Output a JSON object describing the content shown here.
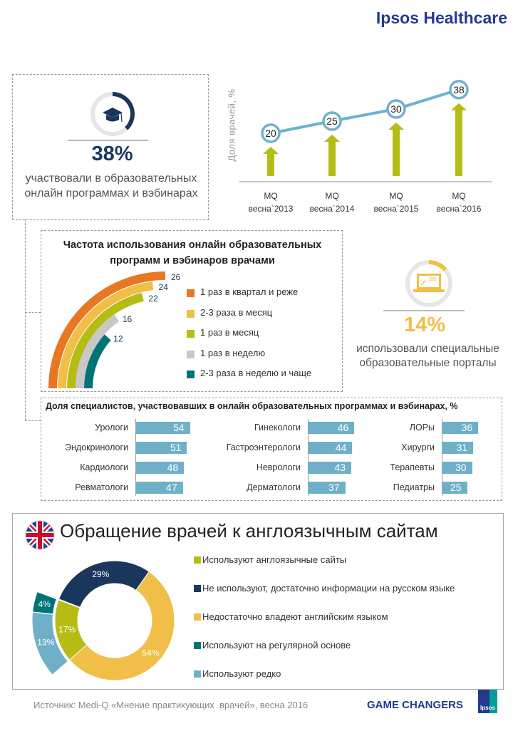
{
  "header": {
    "brand": "Ipsos Healthcare"
  },
  "stat_programs": {
    "value": "38%",
    "text_line1": "участвовали в образовательных",
    "text_line2": "онлайн программах и вэбинарах",
    "fraction": 0.38,
    "icon": "graduation-cap-icon"
  },
  "stat_portals": {
    "value": "14%",
    "text_line1": "использовали специальные",
    "text_line2": "образовательные порталы",
    "fraction": 0.14,
    "icon": "laptop-icon"
  },
  "chart_data": [
    {
      "type": "line",
      "title": "",
      "ylabel": "Доля врачей, %",
      "categories": [
        [
          "MQ",
          "весна`2013"
        ],
        [
          "MQ",
          "весна`2014"
        ],
        [
          "MQ",
          "весна`2015"
        ],
        [
          "MQ",
          "весна`2016"
        ]
      ],
      "values": [
        20,
        25,
        30,
        38
      ],
      "color": "#6fb2cb",
      "arrow_color": "#b5bd14"
    },
    {
      "type": "radial-bar",
      "title_line1": "Частота использования онлайн образовательных",
      "title_line2": "программ и вэбинаров врачами",
      "series": [
        {
          "name": "1 раз в квартал и реже",
          "value": 26,
          "color": "#e87722"
        },
        {
          "name": "2-3 раза в месяц",
          "value": 24,
          "color": "#f1be48"
        },
        {
          "name": "1 раз в месяц",
          "value": 22,
          "color": "#b5bd14"
        },
        {
          "name": "1 раз в неделю",
          "value": 16,
          "color": "#c8c8c8"
        },
        {
          "name": "2-3 раза в неделю и чаще",
          "value": 12,
          "color": "#007377"
        }
      ]
    },
    {
      "type": "bar",
      "title": "Доля специалистов, участвовавших в онлайн образовательных программах и вэбинарах, %",
      "color": "#6fb0c8",
      "columns": [
        [
          {
            "label": "Урологи",
            "value": 54
          },
          {
            "label": "Эндокринологи",
            "value": 51
          },
          {
            "label": "Кардиологи",
            "value": 48
          },
          {
            "label": "Ревматологи",
            "value": 47
          }
        ],
        [
          {
            "label": "Гинекологи",
            "value": 46
          },
          {
            "label": "Гастроэнтерологи",
            "value": 44
          },
          {
            "label": "Неврологи",
            "value": 43
          },
          {
            "label": "Дерматологи",
            "value": 37
          }
        ],
        [
          {
            "label": "ЛОРы",
            "value": 36
          },
          {
            "label": "Хирурги",
            "value": 31
          },
          {
            "label": "Терапевты",
            "value": 30
          },
          {
            "label": "Педиатры",
            "value": 25
          }
        ]
      ]
    },
    {
      "type": "pie",
      "title": "Обращение врачей к англоязычным сайтам",
      "slices": [
        {
          "name": "Используют англоязычные сайты",
          "value": 17,
          "label": "17%",
          "color": "#b5bd14"
        },
        {
          "name": "Не используют, достаточно информации на русском языке",
          "value": 29,
          "label": "29%",
          "color": "#1b365d"
        },
        {
          "name": "Недостаточно владеют английским языком",
          "value": 54,
          "label": "54%",
          "color": "#f1be48"
        },
        {
          "name": "Используют на регулярной основе",
          "value": 4,
          "label": "4%",
          "color": "#007377"
        },
        {
          "name": "Используют редко",
          "value": 13,
          "label": "13%",
          "color": "#6fb0c8"
        }
      ]
    }
  ],
  "footer": {
    "source": "Источник: Medi-Q «Мнение практикующих  врачей», весна 2016",
    "tagline": "GAME CHANGERS",
    "logo": "Ipsos"
  }
}
